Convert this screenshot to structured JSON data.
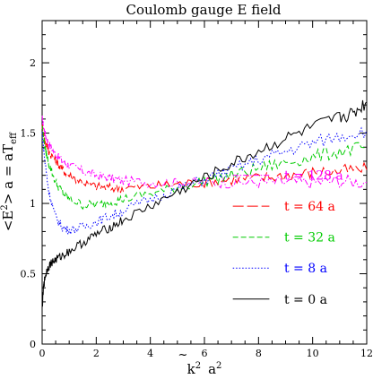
{
  "chart_data": {
    "type": "line",
    "title": "Coulomb gauge E field",
    "xlabel_parts": [
      "k",
      "2",
      "a",
      "2"
    ],
    "ylabel_parts": [
      "<E",
      "2",
      "> a = aT",
      "eff"
    ],
    "xlim": [
      0,
      12
    ],
    "ylim": [
      0,
      2.3
    ],
    "xticks": [
      0,
      2,
      4,
      6,
      8,
      10,
      12
    ],
    "xtick_labels": [
      "0",
      "2",
      "4",
      "6",
      "8",
      "10",
      "12"
    ],
    "yticks": [
      0,
      0.5,
      1,
      1.5,
      2
    ],
    "ytick_labels": [
      "0",
      "0.5",
      "1",
      "1.5",
      "2"
    ],
    "grid": false,
    "legend_position": "right",
    "series": [
      {
        "name": "t = 128 a",
        "color": "#ff00ff",
        "dash": "dashdot",
        "x": [
          0,
          0.1,
          0.25,
          0.5,
          0.75,
          1,
          1.5,
          2,
          2.5,
          3,
          4,
          5,
          6,
          7,
          8,
          9,
          10,
          11,
          12
        ],
        "y": [
          1.6,
          1.5,
          1.42,
          1.35,
          1.3,
          1.27,
          1.23,
          1.2,
          1.18,
          1.16,
          1.15,
          1.15,
          1.15,
          1.15,
          1.15,
          1.15,
          1.15,
          1.16,
          1.15
        ]
      },
      {
        "name": "t = 64 a",
        "color": "#ff0000",
        "dash": "longdash",
        "x": [
          0,
          0.1,
          0.25,
          0.5,
          0.75,
          1,
          1.5,
          2,
          2.5,
          3,
          4,
          5,
          6,
          7,
          8,
          9,
          10,
          11,
          12
        ],
        "y": [
          1.55,
          1.45,
          1.37,
          1.3,
          1.24,
          1.2,
          1.15,
          1.12,
          1.11,
          1.11,
          1.12,
          1.14,
          1.15,
          1.17,
          1.18,
          1.2,
          1.22,
          1.23,
          1.24
        ]
      },
      {
        "name": "t = 32 a",
        "color": "#00cc00",
        "dash": "dashed",
        "x": [
          0,
          0.1,
          0.25,
          0.5,
          0.75,
          1,
          1.5,
          2,
          2.5,
          3,
          4,
          5,
          6,
          7,
          8,
          9,
          10,
          11,
          12
        ],
        "y": [
          1.55,
          1.4,
          1.28,
          1.15,
          1.08,
          1.03,
          0.99,
          0.99,
          1.01,
          1.03,
          1.07,
          1.11,
          1.16,
          1.2,
          1.25,
          1.29,
          1.33,
          1.37,
          1.4
        ]
      },
      {
        "name": "t = 8 a",
        "color": "#0000ff",
        "dash": "dotted",
        "x": [
          0,
          0.1,
          0.25,
          0.5,
          0.75,
          1,
          1.5,
          2,
          2.5,
          3,
          4,
          5,
          6,
          7,
          8,
          9,
          10,
          11,
          12
        ],
        "y": [
          1.5,
          1.3,
          1.08,
          0.9,
          0.83,
          0.81,
          0.83,
          0.87,
          0.91,
          0.95,
          1.03,
          1.1,
          1.17,
          1.24,
          1.31,
          1.37,
          1.43,
          1.48,
          1.52
        ]
      },
      {
        "name": "t = 0 a",
        "color": "#000000",
        "dash": "solid",
        "x": [
          0,
          0.05,
          0.1,
          0.2,
          0.35,
          0.5,
          0.75,
          1,
          1.5,
          2,
          2.5,
          3,
          4,
          5,
          6,
          7,
          8,
          9,
          10,
          11,
          11.5,
          12
        ],
        "y": [
          0.25,
          0.4,
          0.47,
          0.54,
          0.58,
          0.6,
          0.63,
          0.66,
          0.72,
          0.78,
          0.83,
          0.88,
          0.98,
          1.08,
          1.18,
          1.28,
          1.37,
          1.46,
          1.54,
          1.61,
          1.64,
          1.72
        ]
      }
    ]
  }
}
